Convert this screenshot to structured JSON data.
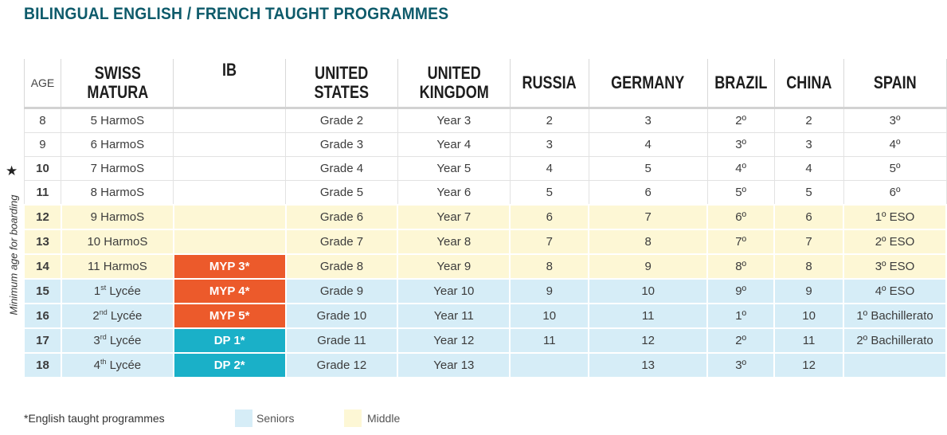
{
  "title": "BILINGUAL ENGLISH / FRENCH TAUGHT PROGRAMMES",
  "side_label": "Minimum age for boarding",
  "star_symbol": "★",
  "headers": {
    "age": "AGE",
    "swiss": "SWISS MATURA",
    "ib": "IB",
    "us": "UNITED STATES",
    "uk": "UNITED KINGDOM",
    "russia": "RUSSIA",
    "germany": "GERMANY",
    "brazil": "BRAZIL",
    "china": "CHINA",
    "spain": "SPAIN"
  },
  "rows": [
    {
      "age": "8",
      "swiss": "5 HarmoS",
      "ib": "",
      "us": "Grade 2",
      "uk": "Year 3",
      "russia": "2",
      "germany": "3",
      "brazil": "2º",
      "china": "2",
      "spain": "3º"
    },
    {
      "age": "9",
      "swiss": "6 HarmoS",
      "ib": "",
      "us": "Grade 3",
      "uk": "Year 4",
      "russia": "3",
      "germany": "4",
      "brazil": "3º",
      "china": "3",
      "spain": "4º"
    },
    {
      "age": "10",
      "swiss": "7 HarmoS",
      "ib": "",
      "us": "Grade 4",
      "uk": "Year 5",
      "russia": "4",
      "germany": "5",
      "brazil": "4º",
      "china": "4",
      "spain": "5º"
    },
    {
      "age": "11",
      "swiss": "8 HarmoS",
      "ib": "",
      "us": "Grade 5",
      "uk": "Year 6",
      "russia": "5",
      "germany": "6",
      "brazil": "5º",
      "china": "5",
      "spain": "6º"
    },
    {
      "age": "12",
      "swiss": "9 HarmoS",
      "ib": "",
      "us": "Grade 6",
      "uk": "Year 7",
      "russia": "6",
      "germany": "7",
      "brazil": "6º",
      "china": "6",
      "spain": "1º ESO"
    },
    {
      "age": "13",
      "swiss": "10 HarmoS",
      "ib": "",
      "us": "Grade 7",
      "uk": "Year 8",
      "russia": "7",
      "germany": "8",
      "brazil": "7º",
      "china": "7",
      "spain": "2º ESO"
    },
    {
      "age": "14",
      "swiss": "11 HarmoS",
      "ib": "MYP 3*",
      "us": "Grade 8",
      "uk": "Year 9",
      "russia": "8",
      "germany": "9",
      "brazil": "8º",
      "china": "8",
      "spain": "3º ESO"
    },
    {
      "age": "15",
      "swiss_num": "1",
      "swiss_sup": "st",
      "swiss_rest": " Lycée",
      "ib": "MYP 4*",
      "us": "Grade 9",
      "uk": "Year 10",
      "russia": "9",
      "germany": "10",
      "brazil": "9º",
      "china": "9",
      "spain": "4º ESO"
    },
    {
      "age": "16",
      "swiss_num": "2",
      "swiss_sup": "nd",
      "swiss_rest": " Lycée",
      "ib": "MYP 5*",
      "us": "Grade 10",
      "uk": "Year 11",
      "russia": "10",
      "germany": "11",
      "brazil": "1º",
      "china": "10",
      "spain": "1º Bachillerato"
    },
    {
      "age": "17",
      "swiss_num": "3",
      "swiss_sup": "rd",
      "swiss_rest": " Lycée",
      "ib": "DP 1*",
      "us": "Grade 11",
      "uk": "Year 12",
      "russia": "11",
      "germany": "12",
      "brazil": "2º",
      "china": "11",
      "spain": "2º Bachillerato"
    },
    {
      "age": "18",
      "swiss_num": "4",
      "swiss_sup": "th",
      "swiss_rest": " Lycée",
      "ib": "DP 2*",
      "us": "Grade 12",
      "uk": "Year 13",
      "russia": "",
      "germany": "13",
      "brazil": "3º",
      "china": "12",
      "spain": ""
    }
  ],
  "legend": {
    "note": "*English taught programmes",
    "seniors": "Seniors",
    "middle": "Middle",
    "seniors_color": "#d6edf7",
    "middle_color": "#fdf7d5",
    "myp_color": "#ec5a2b",
    "dp_color": "#1ab0c8"
  }
}
